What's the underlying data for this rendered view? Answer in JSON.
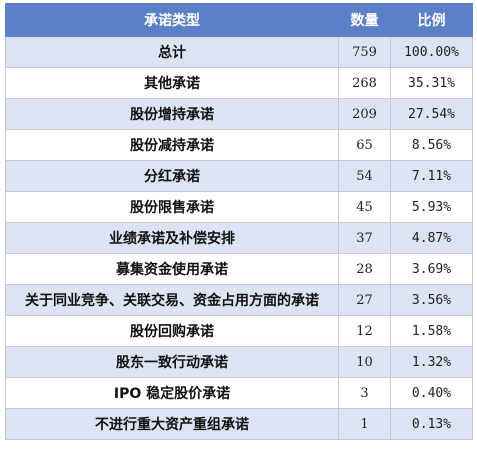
{
  "table": {
    "headers": {
      "type": "承诺类型",
      "count": "数量",
      "ratio": "比例"
    },
    "rows": [
      {
        "type": "总计",
        "count": "759",
        "ratio": "100.00%"
      },
      {
        "type": "其他承诺",
        "count": "268",
        "ratio": "35.31%"
      },
      {
        "type": "股份增持承诺",
        "count": "209",
        "ratio": "27.54%"
      },
      {
        "type": "股份减持承诺",
        "count": "65",
        "ratio": "8.56%"
      },
      {
        "type": "分红承诺",
        "count": "54",
        "ratio": "7.11%"
      },
      {
        "type": "股份限售承诺",
        "count": "45",
        "ratio": "5.93%"
      },
      {
        "type": "业绩承诺及补偿安排",
        "count": "37",
        "ratio": "4.87%"
      },
      {
        "type": "募集资金使用承诺",
        "count": "28",
        "ratio": "3.69%"
      },
      {
        "type": "关于同业竞争、关联交易、资金占用方面的承诺",
        "count": "27",
        "ratio": "3.56%"
      },
      {
        "type": "股份回购承诺",
        "count": "12",
        "ratio": "1.58%"
      },
      {
        "type": "股东一致行动承诺",
        "count": "10",
        "ratio": "1.32%"
      },
      {
        "type": "IPO 稳定股价承诺",
        "count": "3",
        "ratio": "0.40%"
      },
      {
        "type": "不进行重大资产重组承诺",
        "count": "1",
        "ratio": "0.13%"
      }
    ]
  },
  "colors": {
    "header_bg": "#5b80c7",
    "band_bg": "#dce3f3",
    "row_bg": "#ffffff"
  }
}
